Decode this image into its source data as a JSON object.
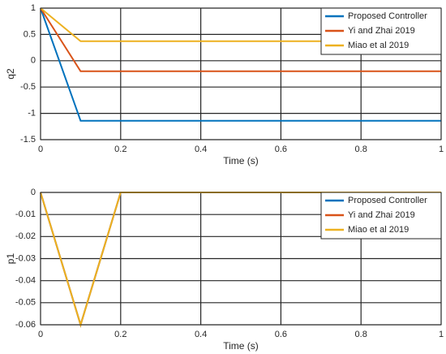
{
  "chart_data": [
    {
      "type": "line",
      "title": "",
      "xlabel": "Time (s)",
      "ylabel": "q2",
      "xlim": [
        0,
        1
      ],
      "ylim": [
        -1.5,
        1
      ],
      "xticks": [
        0,
        0.2,
        0.4,
        0.6,
        0.8,
        1
      ],
      "xtick_labels": [
        "0",
        "0.2",
        "0.4",
        "0.6",
        "0.8",
        "1"
      ],
      "yticks": [
        1,
        0.5,
        0,
        -0.5,
        -1,
        -1.5
      ],
      "ytick_labels": [
        "1",
        "0.5",
        "0",
        "-0.5",
        "-1",
        "-1.5"
      ],
      "grid": true,
      "legend_position": "top-right",
      "series": [
        {
          "name": "Proposed Controller",
          "color": "#0072bd",
          "x": [
            0,
            0.1,
            1
          ],
          "y": [
            1,
            -1.14,
            -1.14
          ]
        },
        {
          "name": "Yi and Zhai 2019",
          "color": "#d95319",
          "x": [
            0,
            0.1,
            1
          ],
          "y": [
            1,
            -0.2,
            -0.2
          ]
        },
        {
          "name": "Miao et al 2019",
          "color": "#edb120",
          "x": [
            0,
            0.1,
            1
          ],
          "y": [
            1,
            0.37,
            0.37
          ]
        }
      ]
    },
    {
      "type": "line",
      "title": "",
      "xlabel": "Time (s)",
      "ylabel": "p1",
      "xlim": [
        0,
        1
      ],
      "ylim": [
        -0.06,
        0
      ],
      "xticks": [
        0,
        0.2,
        0.4,
        0.6,
        0.8,
        1
      ],
      "xtick_labels": [
        "0",
        "0.2",
        "0.4",
        "0.6",
        "0.8",
        "1"
      ],
      "yticks": [
        0,
        -0.01,
        -0.02,
        -0.03,
        -0.04,
        -0.05,
        -0.06
      ],
      "ytick_labels": [
        "0",
        "-0.01",
        "-0.02",
        "-0.03",
        "-0.04",
        "-0.05",
        "-0.06"
      ],
      "grid": true,
      "legend_position": "top-right",
      "series": [
        {
          "name": "Proposed Controller",
          "color": "#0072bd",
          "x": [
            0,
            0.1,
            0.2,
            1
          ],
          "y": [
            0,
            -0.06,
            0,
            0
          ]
        },
        {
          "name": "Yi and Zhai 2019",
          "color": "#d95319",
          "x": [
            0,
            0.1,
            0.2,
            1
          ],
          "y": [
            0,
            -0.06,
            0,
            0
          ]
        },
        {
          "name": "Miao et al 2019",
          "color": "#edb120",
          "x": [
            0,
            0.1,
            0.2,
            1
          ],
          "y": [
            0,
            -0.06,
            0,
            0
          ]
        }
      ]
    }
  ]
}
